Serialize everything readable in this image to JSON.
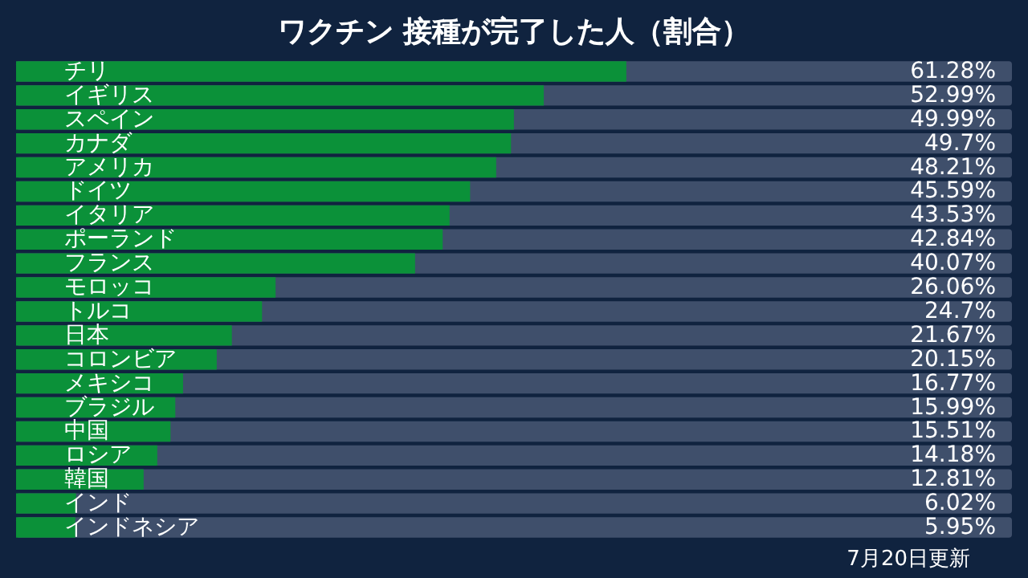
{
  "chart_data": {
    "type": "bar",
    "orientation": "horizontal",
    "title": "ワクチン 接種が完了した人（割合）",
    "categories": [
      "チリ",
      "イギリス",
      "スペイン",
      "カナダ",
      "アメリカ",
      "ドイツ",
      "イタリア",
      "ポーランド",
      "フランス",
      "モロッコ",
      "トルコ",
      "日本",
      "コロンビア",
      "メキシコ",
      "ブラジル",
      "中国",
      "ロシア",
      "韓国",
      "インド",
      "インドネシア"
    ],
    "values": [
      61.28,
      52.99,
      49.99,
      49.7,
      48.21,
      45.59,
      43.53,
      42.84,
      40.07,
      26.06,
      24.7,
      21.67,
      20.15,
      16.77,
      15.99,
      15.51,
      14.18,
      12.81,
      6.02,
      5.95
    ],
    "value_labels": [
      "61.28%",
      "52.99%",
      "49.99%",
      "49.7%",
      "48.21%",
      "45.59%",
      "43.53%",
      "42.84%",
      "40.07%",
      "26.06%",
      "24.7%",
      "21.67%",
      "20.15%",
      "16.77%",
      "15.99%",
      "15.51%",
      "14.18%",
      "12.81%",
      "6.02%",
      "5.95%"
    ],
    "color": "#0b9139",
    "xlim": [
      0,
      100
    ],
    "annotations": [
      "7月20日更新"
    ]
  }
}
